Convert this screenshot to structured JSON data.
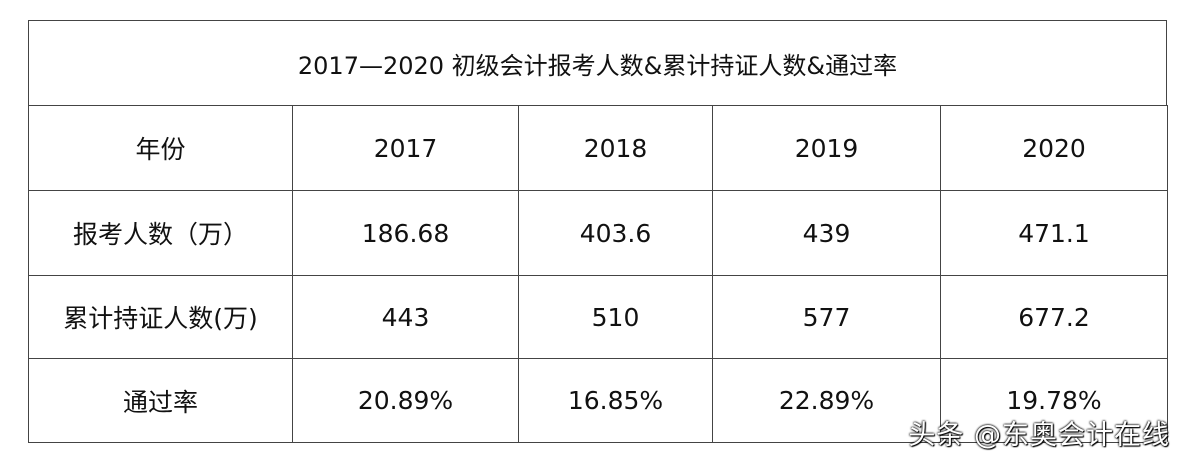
{
  "title": "2017—2020 初级会计报考人数&累计持证人数&通过率",
  "table": {
    "header": [
      "年份",
      "2017",
      "2018",
      "2019",
      "2020"
    ],
    "rows": [
      [
        "报考人数（万）",
        "186.68",
        "403.6",
        "439",
        "471.1"
      ],
      [
        "累计持证人数(万)",
        "443",
        "510",
        "577",
        "677.2"
      ],
      [
        "通过率",
        "20.89%",
        "16.85%",
        "22.89%",
        "19.78%"
      ]
    ]
  },
  "watermark": "头条 @东奥会计在线"
}
